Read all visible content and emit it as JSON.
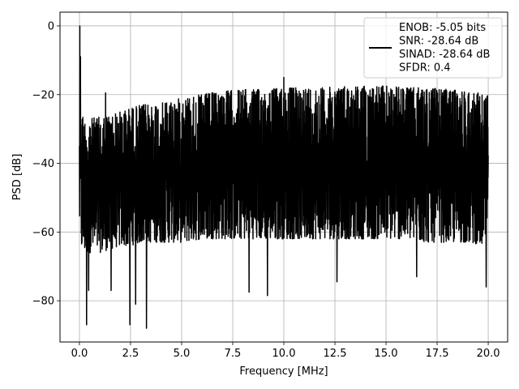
{
  "chart_data": {
    "type": "line",
    "xlabel": "Frequency [MHz]",
    "ylabel": "PSD [dB]",
    "xlim": [
      -0.95,
      20.95
    ],
    "ylim": [
      -92,
      4
    ],
    "xticks": [
      0.0,
      2.5,
      5.0,
      7.5,
      10.0,
      12.5,
      15.0,
      17.5,
      20.0
    ],
    "xtick_labels": [
      "0.0",
      "2.5",
      "5.0",
      "7.5",
      "10.0",
      "12.5",
      "15.0",
      "17.5",
      "20.0"
    ],
    "yticks": [
      0,
      -20,
      -40,
      -60,
      -80
    ],
    "ytick_labels": [
      "0",
      "−20",
      "−40",
      "−60",
      "−80"
    ],
    "grid": true,
    "legend_position": "top-right",
    "legend_lines": [
      "ENOB: -5.05 bits",
      "SNR: -28.64 dB",
      "SINAD: -28.64 dB",
      "SFDR: 0.4"
    ],
    "line_color": "#000000",
    "series": [
      {
        "upper_envelope": {
          "x": [
            0.0,
            0.03,
            0.1,
            0.3,
            0.5,
            1.0,
            1.5,
            2.0,
            2.5,
            3.0,
            4.0,
            5.0,
            6.0,
            7.0,
            8.0,
            9.0,
            10.0,
            11.0,
            12.0,
            13.0,
            14.0,
            15.0,
            16.0,
            17.0,
            18.0,
            19.0,
            19.5,
            20.0
          ],
          "y": [
            -26,
            0,
            -25,
            -28,
            -27,
            -26.5,
            -26,
            -25,
            -24,
            -23,
            -22.5,
            -21,
            -20,
            -19,
            -18.5,
            -18.5,
            -18,
            -18,
            -18,
            -17.5,
            -17.5,
            -17.5,
            -18,
            -18,
            -18.5,
            -19,
            -19.5,
            -20
          ]
        },
        "lower_envelope": {
          "x": [
            0.0,
            0.1,
            0.3,
            0.5,
            1.0,
            1.5,
            2.0,
            2.5,
            3.0,
            4.0,
            5.0,
            6.0,
            7.0,
            8.0,
            9.0,
            10.0,
            11.0,
            12.0,
            13.0,
            14.0,
            15.0,
            16.0,
            17.0,
            18.0,
            19.0,
            20.0
          ],
          "y": [
            -58,
            -65,
            -66,
            -66,
            -66,
            -65,
            -64,
            -64,
            -63,
            -63,
            -63,
            -62,
            -62,
            -62,
            -62,
            -62,
            -62,
            -62,
            -62,
            -62,
            -62,
            -62,
            -63,
            -63,
            -63,
            -64
          ]
        },
        "spikes": [
          {
            "x": 0.02,
            "y": 0.0
          },
          {
            "x": 1.28,
            "y": -19.5
          },
          {
            "x": 10.0,
            "y": -15.0
          },
          {
            "x": 0.35,
            "y": -87.0
          },
          {
            "x": 0.45,
            "y": -77.0
          },
          {
            "x": 1.55,
            "y": -77.0
          },
          {
            "x": 2.47,
            "y": -87.0
          },
          {
            "x": 2.75,
            "y": -81.0
          },
          {
            "x": 3.28,
            "y": -88.0
          },
          {
            "x": 8.3,
            "y": -77.5
          },
          {
            "x": 9.2,
            "y": -78.5
          },
          {
            "x": 12.6,
            "y": -74.5
          },
          {
            "x": 16.5,
            "y": -73.0
          },
          {
            "x": 19.9,
            "y": -76.0
          }
        ]
      }
    ]
  }
}
